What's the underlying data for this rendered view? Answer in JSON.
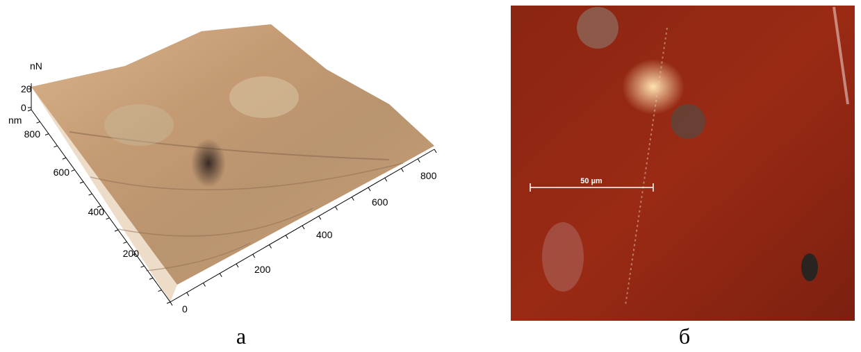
{
  "panels": [
    {
      "label": "а",
      "z_axis": {
        "unit": "nN",
        "ticks": [
          "20",
          "0"
        ]
      },
      "y_axis": {
        "unit": "nm",
        "ticks": [
          "800",
          "600",
          "400",
          "200"
        ]
      },
      "x_axis": {
        "ticks": [
          "0",
          "200",
          "400",
          "600",
          "800"
        ]
      }
    },
    {
      "label": "б",
      "scale_bar": "50 µm"
    }
  ]
}
